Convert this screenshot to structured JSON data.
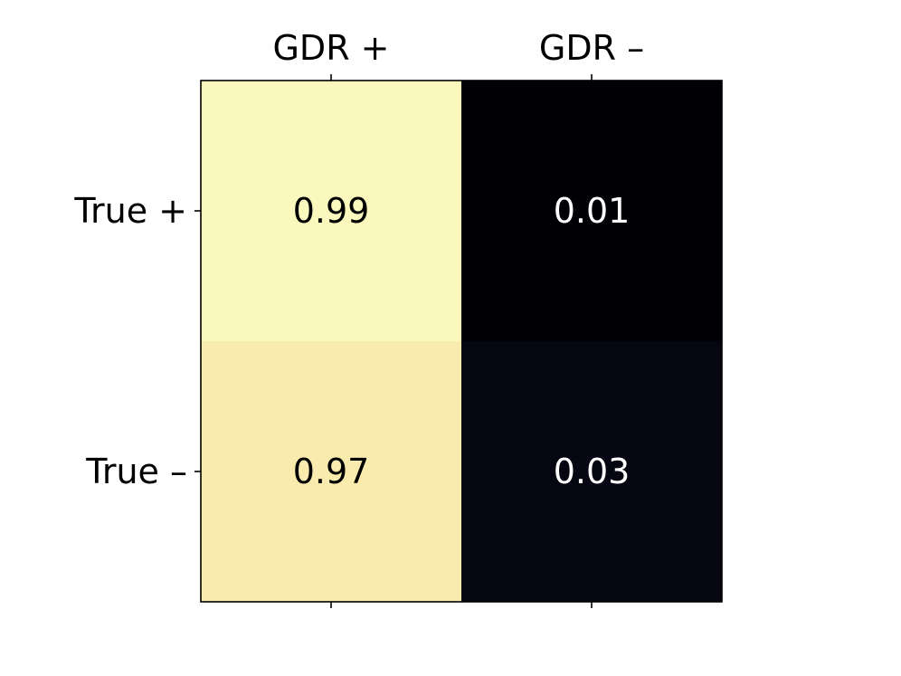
{
  "chart_data": {
    "type": "heatmap",
    "title": "",
    "xlabel": "",
    "ylabel": "",
    "x_categories": [
      "GDR +",
      "GDR –"
    ],
    "y_categories": [
      "True +",
      "True –"
    ],
    "values": [
      [
        0.99,
        0.01
      ],
      [
        0.97,
        0.03
      ]
    ],
    "value_labels": [
      [
        "0.99",
        "0.01"
      ],
      [
        "0.97",
        "0.03"
      ]
    ],
    "vmin": 0,
    "vmax": 1,
    "x_tick_position": "top",
    "grid": false,
    "colormap": "magma",
    "colors": {
      "cells": [
        [
          "#fbf8be",
          "#010005"
        ],
        [
          "#f9ebae",
          "#060612"
        ]
      ],
      "text_on_light": "#000000",
      "text_on_dark": "#ffffff"
    }
  }
}
